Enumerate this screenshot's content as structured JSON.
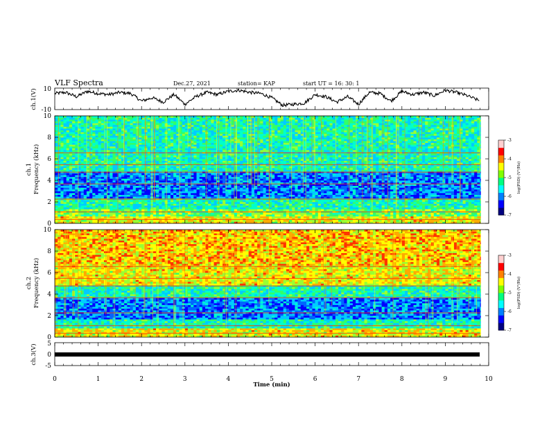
{
  "header": {
    "title": "VLF Spectra",
    "date": "Dec.27, 2021",
    "station": "station= KAP",
    "start_ut": "start  UT =   16: 30: 1"
  },
  "colorbar": {
    "label": "log(PSD) (V²/Hz)",
    "ticks": [
      "-3",
      "-4",
      "-5",
      "-6",
      "-7"
    ],
    "colors": [
      "#000080",
      "#0000ff",
      "#0080ff",
      "#00ffff",
      "#00ff80",
      "#80ff00",
      "#ffff00",
      "#ff8000",
      "#ff0000",
      "#ffffff"
    ]
  },
  "chart_data": [
    {
      "type": "line",
      "name": "ch1-waveform",
      "ylabel": "ch.1(V)",
      "ylim": [
        -10,
        10
      ],
      "yticks": [
        "10",
        "-10"
      ],
      "x": [
        0,
        0.25,
        0.5,
        0.75,
        1.0,
        1.25,
        1.5,
        1.75,
        2.0,
        2.25,
        2.5,
        2.75,
        3.0,
        3.25,
        3.5,
        3.75,
        4.0,
        4.25,
        4.5,
        4.75,
        5.0,
        5.25,
        5.5,
        5.75,
        6.0,
        6.25,
        6.5,
        6.75,
        7.0,
        7.25,
        7.5,
        7.75,
        8.0,
        8.25,
        8.5,
        8.75,
        9.0,
        9.25,
        9.5,
        9.8
      ],
      "y": [
        5,
        6,
        2,
        7,
        5,
        4,
        6,
        5,
        -2,
        1,
        -3,
        4,
        -5,
        2,
        6,
        4,
        7,
        8,
        6,
        5,
        1,
        -6,
        -5,
        -4,
        4,
        2,
        -3,
        2,
        -5,
        6,
        5,
        -2,
        7,
        4,
        6,
        3,
        8,
        6,
        3,
        -2
      ]
    },
    {
      "type": "heatmap",
      "name": "ch1-spectrogram",
      "ylabel": "ch.1\nFrequency (kHz)",
      "ylim": [
        0,
        10
      ],
      "yticks": [
        "10",
        "8",
        "6",
        "4",
        "2",
        "0"
      ],
      "xlim": [
        0,
        10
      ],
      "colorscale": "log(PSD) -7 to -3",
      "bands": [
        {
          "f0": 0.0,
          "f1": 0.6,
          "level": "high"
        },
        {
          "f0": 0.6,
          "f1": 1.4,
          "level": "mid-high"
        },
        {
          "f0": 1.4,
          "f1": 2.4,
          "level": "mid"
        },
        {
          "f0": 2.4,
          "f1": 3.6,
          "level": "low"
        },
        {
          "f0": 3.6,
          "f1": 4.8,
          "level": "low"
        },
        {
          "f0": 4.8,
          "f1": 5.6,
          "level": "mid"
        },
        {
          "f0": 5.6,
          "f1": 6.6,
          "level": "mid"
        },
        {
          "f0": 6.6,
          "f1": 10.0,
          "level": "mid"
        }
      ]
    },
    {
      "type": "heatmap",
      "name": "ch2-spectrogram",
      "ylabel": "ch.2\nFrequency (kHz)",
      "ylim": [
        0,
        10
      ],
      "yticks": [
        "10",
        "8",
        "6",
        "4",
        "2",
        "0"
      ],
      "xlim": [
        0,
        10
      ],
      "colorscale": "log(PSD) -7 to -3",
      "bands": [
        {
          "f0": 0.0,
          "f1": 0.8,
          "level": "high"
        },
        {
          "f0": 0.8,
          "f1": 1.6,
          "level": "mid"
        },
        {
          "f0": 1.6,
          "f1": 3.6,
          "level": "low"
        },
        {
          "f0": 3.6,
          "f1": 4.8,
          "level": "mid"
        },
        {
          "f0": 4.8,
          "f1": 6.6,
          "level": "high"
        },
        {
          "f0": 6.6,
          "f1": 10.0,
          "level": "very-high"
        }
      ]
    },
    {
      "type": "line",
      "name": "ch3-waveform",
      "ylabel": "ch.3(V)",
      "ylim": [
        -5,
        5
      ],
      "yticks": [
        "5",
        "0",
        "-5"
      ],
      "x": [
        0,
        9.8
      ],
      "y": [
        0,
        0
      ]
    }
  ],
  "xaxis": {
    "label": "Time (min)",
    "xlim": [
      0,
      10
    ],
    "ticks": [
      "0",
      "1",
      "2",
      "3",
      "4",
      "5",
      "6",
      "7",
      "8",
      "9",
      "10"
    ]
  }
}
